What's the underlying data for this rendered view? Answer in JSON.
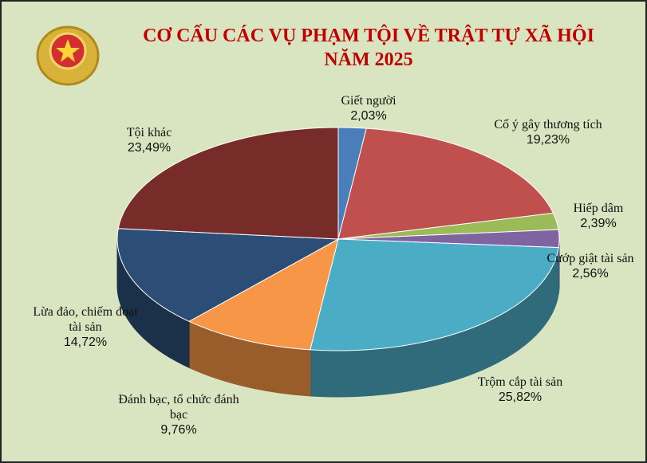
{
  "chart_data": {
    "type": "pie",
    "title": "CƠ CẤU CÁC VỤ PHẠM TỘI VỀ TRẬT TỰ XÃ HỘI",
    "subtitle": "NĂM 2025",
    "categories": [
      "Giết người",
      "Cố ý gây thương tích",
      "Hiếp dâm",
      "Cướp giật tài sản",
      "Trộm cắp tài sản",
      "Đánh bạc, tổ chức đánh bạc",
      "Lừa đảo, chiếm đoạt tài sản",
      "Tội khác"
    ],
    "values": [
      2.03,
      19.23,
      2.39,
      2.56,
      25.82,
      9.76,
      14.72,
      23.49
    ],
    "value_labels": [
      "2,03%",
      "19,23%",
      "2,39%",
      "2,56%",
      "25,82%",
      "9,76%",
      "14,72%",
      "23,49%"
    ],
    "colors": [
      "#4a7ebb",
      "#c0504d",
      "#9bbb59",
      "#8064a2",
      "#4bacc6",
      "#f79646",
      "#2c4d75",
      "#772c2a"
    ]
  }
}
